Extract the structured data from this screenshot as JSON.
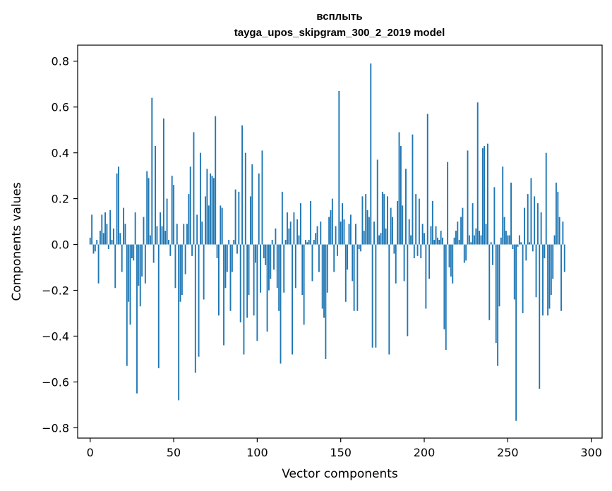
{
  "chart_data": {
    "type": "bar",
    "title_line1": "всплыть",
    "title_line2": "tayga_upos_skipgram_300_2_2019 model",
    "xlabel": "Vector components",
    "ylabel": "Components values",
    "xlim": [
      -7.5,
      306.5
    ],
    "ylim": [
      -0.845,
      0.87
    ],
    "xticks": [
      0,
      50,
      100,
      150,
      200,
      250,
      300
    ],
    "yticks": [
      -0.8,
      -0.6,
      -0.4,
      -0.2,
      0.0,
      0.2,
      0.4,
      0.6,
      0.8
    ],
    "ytick_labels": [
      "−0.8",
      "−0.6",
      "−0.4",
      "−0.2",
      "0.0",
      "0.2",
      "0.4",
      "0.6",
      "0.8"
    ],
    "bar_color": "#1f77b4",
    "grid": false,
    "values": [
      0.03,
      0.13,
      -0.04,
      -0.03,
      0.02,
      -0.17,
      0.06,
      0.13,
      0.05,
      0.14,
      0.09,
      -0.02,
      0.15,
      0.02,
      0.07,
      -0.19,
      0.31,
      0.34,
      0.05,
      -0.12,
      0.16,
      0.09,
      -0.53,
      -0.25,
      -0.35,
      -0.06,
      -0.07,
      0.14,
      -0.65,
      -0.18,
      -0.27,
      -0.14,
      0.12,
      -0.17,
      0.32,
      0.29,
      0.04,
      0.64,
      -0.08,
      0.43,
      0.08,
      -0.54,
      0.14,
      0.08,
      0.55,
      0.06,
      0.2,
      0.02,
      -0.05,
      0.3,
      0.26,
      -0.19,
      0.09,
      -0.68,
      -0.25,
      -0.22,
      0.09,
      -0.13,
      0.09,
      0.22,
      0.34,
      -0.05,
      0.49,
      -0.56,
      0.13,
      -0.49,
      0.4,
      0.1,
      -0.24,
      0.21,
      0.33,
      0.17,
      0.31,
      0.3,
      0.29,
      0.56,
      -0.06,
      -0.31,
      0.17,
      0.16,
      -0.44,
      -0.19,
      -0.12,
      0.02,
      -0.29,
      -0.12,
      0.02,
      0.24,
      -0.04,
      0.23,
      -0.34,
      0.52,
      -0.48,
      0.4,
      -0.32,
      -0.22,
      0.21,
      0.35,
      -0.31,
      -0.08,
      -0.42,
      0.31,
      -0.21,
      0.41,
      -0.06,
      -0.09,
      -0.38,
      -0.2,
      -0.15,
      0.02,
      -0.11,
      0.07,
      -0.19,
      -0.29,
      -0.52,
      0.23,
      -0.21,
      0.02,
      0.14,
      0.07,
      0.1,
      -0.48,
      0.14,
      -0.19,
      0.11,
      0.04,
      0.18,
      -0.22,
      -0.35,
      0.02,
      0.01,
      0.02,
      0.19,
      -0.16,
      0.02,
      0.05,
      0.08,
      -0.12,
      0.1,
      -0.28,
      -0.32,
      -0.5,
      -0.21,
      0.12,
      0.15,
      0.2,
      -0.12,
      0.08,
      -0.05,
      0.67,
      0.1,
      0.18,
      0.11,
      -0.25,
      -0.11,
      0.09,
      0.13,
      -0.16,
      -0.29,
      0.09,
      -0.29,
      -0.02,
      -0.03,
      0.21,
      0.06,
      0.22,
      0.15,
      0.12,
      0.79,
      -0.45,
      0.1,
      -0.45,
      0.37,
      0.04,
      0.05,
      0.23,
      0.22,
      0.07,
      0.21,
      -0.48,
      0.16,
      0.12,
      -0.04,
      -0.17,
      0.19,
      0.49,
      0.43,
      0.17,
      -0.16,
      0.33,
      -0.4,
      0.11,
      0.04,
      0.48,
      -0.06,
      0.22,
      -0.05,
      0.2,
      -0.06,
      0.09,
      0.05,
      -0.28,
      0.57,
      -0.15,
      0.08,
      0.19,
      0.02,
      0.08,
      0.03,
      0.02,
      0.06,
      0.03,
      -0.37,
      -0.46,
      0.36,
      -0.1,
      -0.14,
      -0.17,
      0.03,
      0.06,
      0.1,
      0.02,
      0.12,
      0.16,
      -0.08,
      -0.07,
      0.41,
      0.04,
      0.01,
      0.18,
      0.04,
      0.07,
      0.62,
      0.06,
      0.04,
      0.42,
      0.43,
      0.09,
      0.44,
      -0.33,
      0.01,
      -0.09,
      0.25,
      -0.43,
      -0.53,
      -0.27,
      0.03,
      0.34,
      0.12,
      0.06,
      0.04,
      0.04,
      0.27,
      -0.02,
      -0.24,
      -0.77,
      -0.01,
      0.04,
      0.01,
      -0.3,
      0.16,
      -0.07,
      0.22,
      0.01,
      0.29,
      -0.03,
      0.21,
      -0.23,
      0.18,
      -0.63,
      0.14,
      -0.31,
      -0.06,
      0.4,
      -0.31,
      -0.28,
      -0.22,
      -0.15,
      0.04,
      0.27,
      0.23,
      0.12,
      -0.29,
      0.1,
      -0.12
    ]
  }
}
